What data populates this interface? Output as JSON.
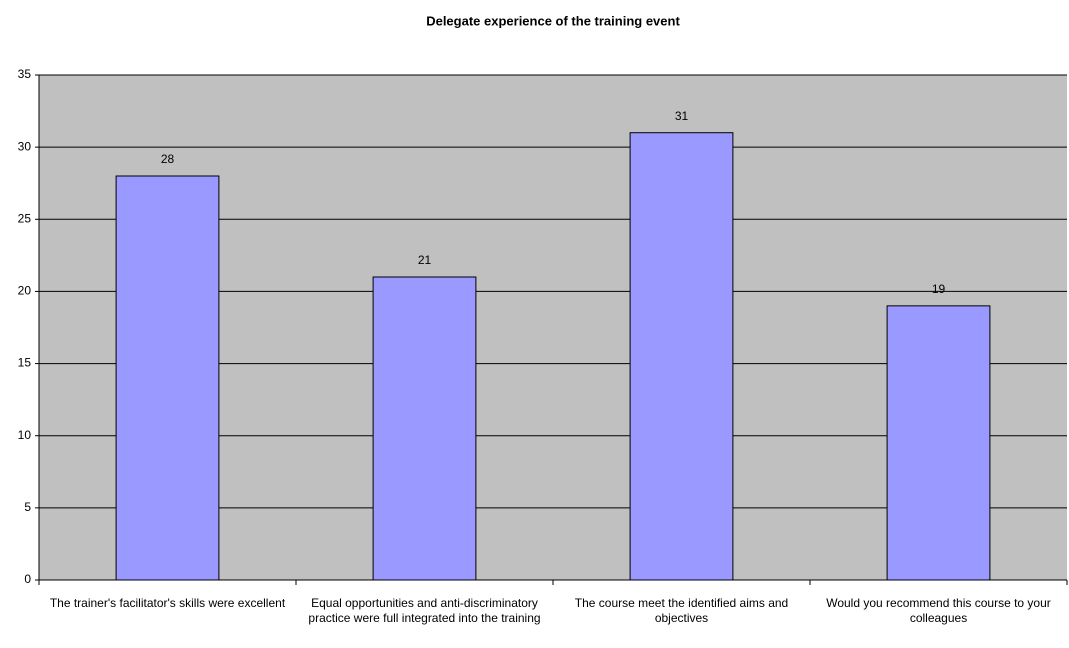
{
  "chart_data": {
    "type": "bar",
    "title": "Delegate experience of the training event",
    "categories": [
      "The trainer's facilitator's skills were excellent",
      "Equal opportunities and anti-discriminatory practice were full integrated into the training",
      "The course meet the identified aims and objectives",
      "Would you recommend this course to your colleagues"
    ],
    "values": [
      28,
      21,
      31,
      19
    ],
    "color": "#9999ff",
    "background": "#c0c0c0",
    "ylim": [
      0,
      35
    ],
    "yticks": [
      0,
      5,
      10,
      15,
      20,
      25,
      30,
      35
    ],
    "grid": true
  }
}
